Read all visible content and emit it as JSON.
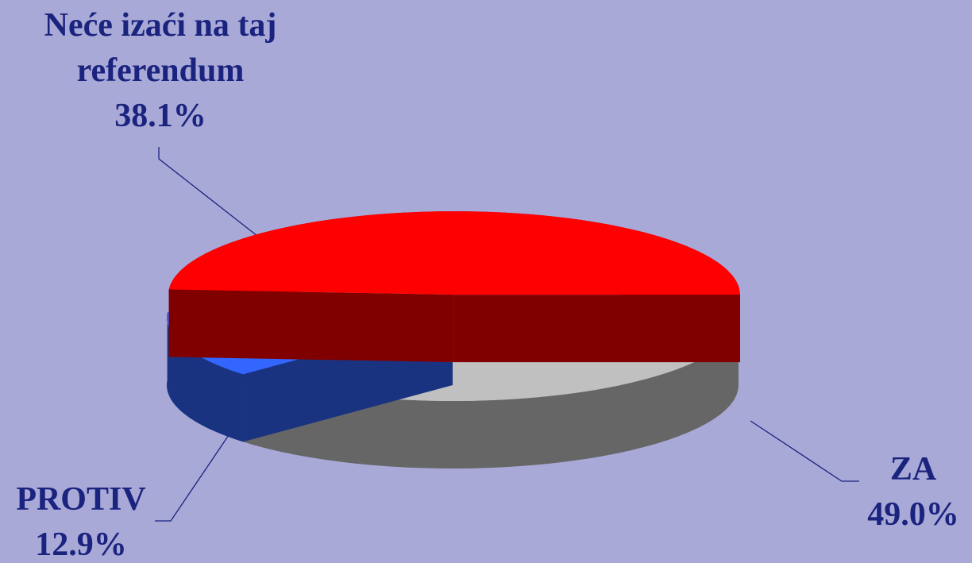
{
  "chart_data": {
    "type": "pie",
    "three_d": true,
    "slices": [
      {
        "label": "ZA",
        "value": 49.0,
        "value_label": "49.0%",
        "color": "#ff0000",
        "side_color": "#800000",
        "exploded": true
      },
      {
        "label": "PROTIV",
        "value": 12.9,
        "value_label": "12.9%",
        "color": "#3366ff",
        "side_color": "#1a3380",
        "exploded": false
      },
      {
        "label": "Neće izaći na taj referendum",
        "value": 38.1,
        "value_label": "38.1%",
        "color": "#c0c0c0",
        "side_color": "#666666",
        "exploded": false
      }
    ],
    "background": "#a9a9d8",
    "label_color": "#1a237e",
    "legend": "none"
  }
}
